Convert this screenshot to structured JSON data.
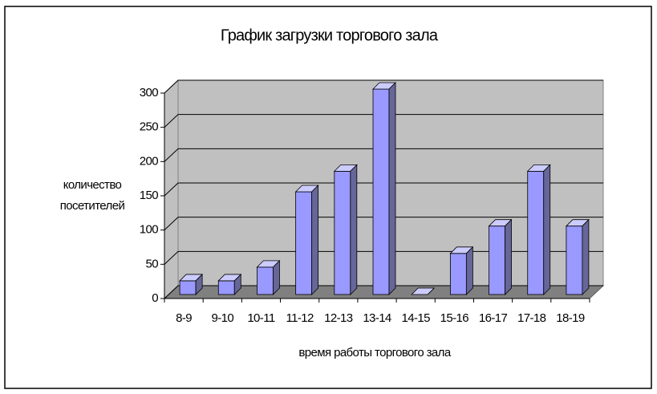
{
  "chart_data": {
    "type": "bar3d",
    "title": "График загрузки торгового зала",
    "xlabel": "время работы торгового зала",
    "ylabel": "количество посетителей",
    "categories": [
      "8-9",
      "9-10",
      "10-11",
      "11-12",
      "12-13",
      "13-14",
      "14-15",
      "15-16",
      "16-17",
      "17-18",
      "18-19"
    ],
    "values": [
      20,
      20,
      40,
      150,
      180,
      300,
      0,
      60,
      100,
      180,
      100
    ],
    "color": "#9999ff",
    "ylim": [
      0,
      300
    ],
    "yticks": [
      0,
      50,
      100,
      150,
      200,
      250,
      300
    ],
    "grid": true
  }
}
